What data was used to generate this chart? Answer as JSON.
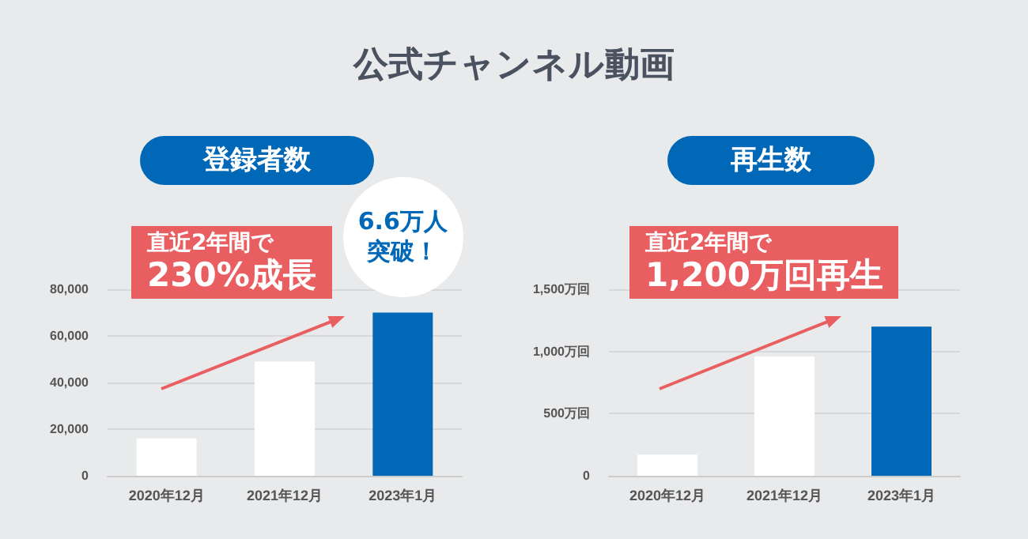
{
  "chart_data": [
    {
      "type": "bar",
      "title": "公式チャンネル動画",
      "subtitle": "登録者数",
      "categories": [
        "2020年12月",
        "2021年12月",
        "2023年1月"
      ],
      "values": [
        16000,
        49000,
        70000
      ],
      "colors": [
        "#ffffff",
        "#ffffff",
        "#0068b7"
      ],
      "ylim": [
        0,
        80000
      ],
      "yticks": [
        0,
        {
          "value": 20000,
          "label": "20,000"
        },
        {
          "value": 40000,
          "label": "40,000"
        },
        {
          "value": 60000,
          "label": "60,000"
        },
        {
          "value": 80000,
          "label": "80,000"
        }
      ],
      "grid": "y",
      "annotations": [
        "直近2年間で\n230%成長",
        {
          "text": "6.6万人突破！",
          "x": "2023年1月",
          "y": 70000
        }
      ]
    },
    {
      "type": "bar",
      "title": "再生数",
      "categories": [
        "2020年12月",
        "2021年12月",
        "2023年1月"
      ],
      "values": [
        170,
        960,
        1200
      ],
      "colors": [
        "#ffffff",
        "#ffffff",
        "#0068b7"
      ],
      "ylim": [
        0,
        1500
      ],
      "yticks": [
        0,
        {
          "value": 500,
          "label": "500万回"
        },
        {
          "value": 1000,
          "label": "1,000万回"
        },
        {
          "value": 1500,
          "label": "1,500万回"
        }
      ],
      "grid": "y",
      "annotations": [
        "直近2年間で\n1,200万回再生"
      ]
    }
  ]
}
